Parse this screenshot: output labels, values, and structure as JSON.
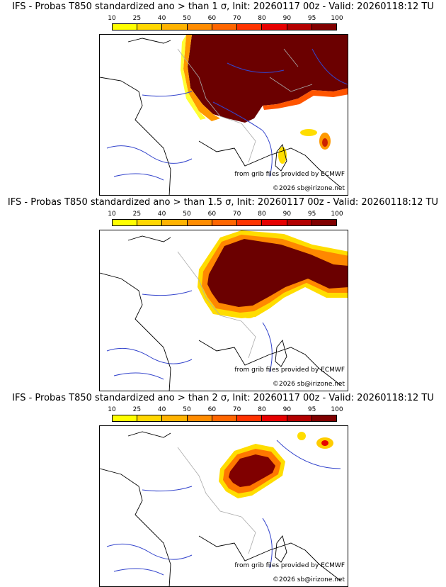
{
  "colorbar": {
    "ticks": [
      "10",
      "25",
      "40",
      "50",
      "60",
      "70",
      "80",
      "90",
      "95",
      "100"
    ],
    "colors": [
      "#ffff00",
      "#ffd700",
      "#ffb300",
      "#ff8c00",
      "#ff6600",
      "#ff3300",
      "#e60000",
      "#b30000",
      "#800000"
    ]
  },
  "panels": [
    {
      "title": "IFS - Probas T850  standardized ano > than 1 σ, Init: 20260117 00z - Valid: 20260118:12 TU",
      "credit_source": "from grib files provided by ECMWF",
      "credit_copyright": "©2026 sb@irizone.net"
    },
    {
      "title": "IFS - Probas T850  standardized ano > than 1.5 σ, Init: 20260117 00z - Valid: 20260118:12 TU",
      "credit_source": "from grib files provided by ECMWF",
      "credit_copyright": "©2026 sb@irizone.net"
    },
    {
      "title": "IFS - Probas T850  standardized ano > than 2 σ, Init: 20260117 00z - Valid: 20260118:12 TU",
      "credit_source": "from grib files provided by ECMWF",
      "credit_copyright": "©2026 sb@irizone.net"
    }
  ],
  "styles": {
    "coast": "#000000",
    "rivers": "#3344cc",
    "borders": "#aaaaaa"
  }
}
